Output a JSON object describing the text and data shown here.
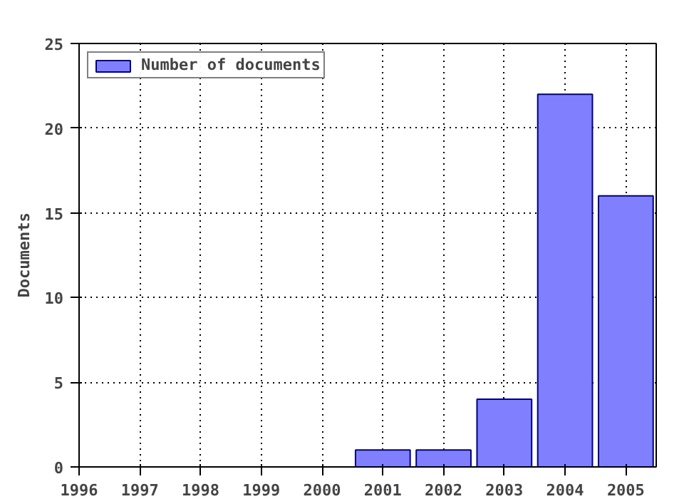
{
  "chart_data": {
    "type": "bar",
    "ylabel": "Documents",
    "x": [
      2001,
      2002,
      2003,
      2004,
      2005
    ],
    "series": [
      {
        "name": "Number of documents",
        "color": "#8080ff",
        "values": [
          1,
          1,
          4,
          22,
          16
        ]
      }
    ],
    "xlim": [
      1996,
      2005.5
    ],
    "xticks": [
      1996,
      1997,
      1998,
      1999,
      2000,
      2001,
      2002,
      2003,
      2004,
      2005
    ],
    "ylim": [
      0,
      25
    ],
    "yticks": [
      0,
      5,
      10,
      15,
      20,
      25
    ],
    "grid": true,
    "legend": "top left"
  }
}
